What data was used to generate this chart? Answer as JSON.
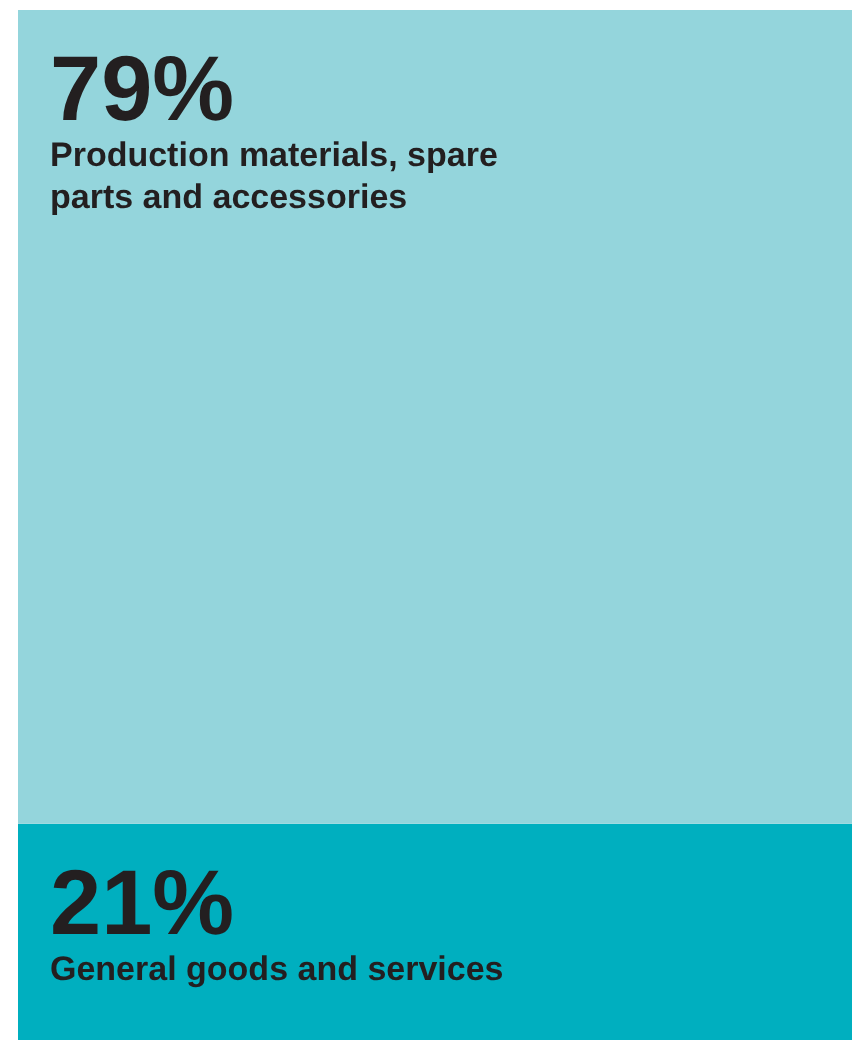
{
  "chart_data": {
    "type": "bar",
    "stacked": true,
    "categories": [
      null
    ],
    "series": [
      {
        "name": "General goods and services",
        "color": "#00afbf",
        "values": [
          21
        ],
        "value_labels": [
          "21%"
        ]
      },
      {
        "name": "Production materials, spare parts and accessories",
        "color": "#94d5dc",
        "values": [
          79
        ],
        "value_labels": [
          "79%"
        ]
      }
    ]
  }
}
